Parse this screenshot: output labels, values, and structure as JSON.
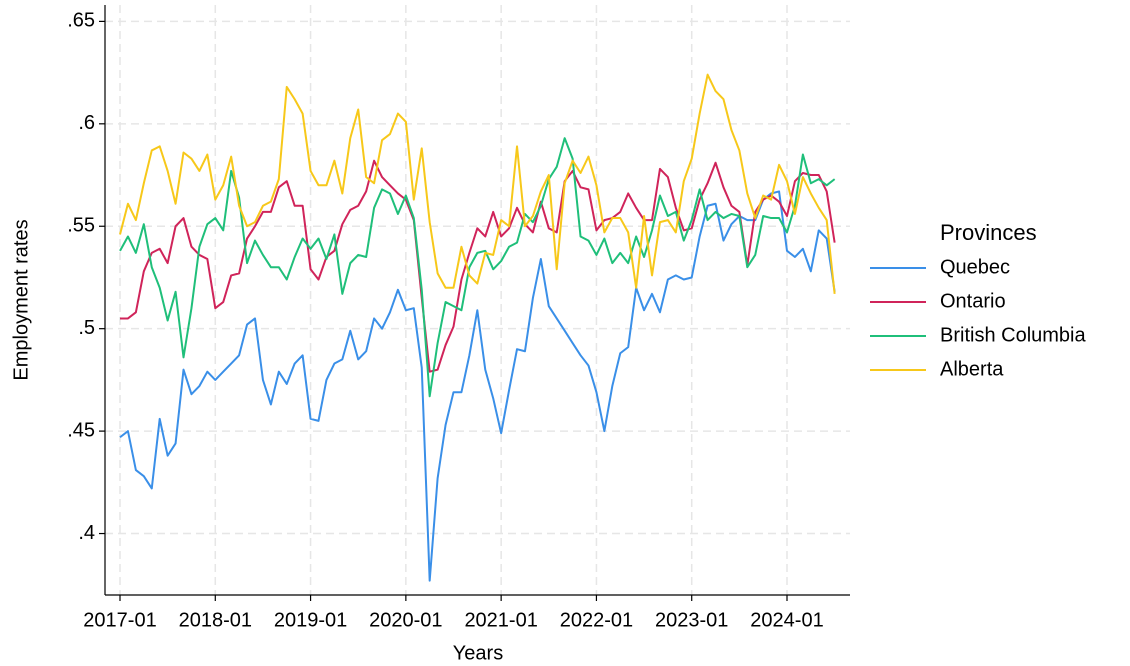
{
  "chart_data": {
    "type": "line",
    "y_label": "Employment rates",
    "x_label": "Years",
    "legend_title": "Provinces",
    "x": [
      "2017-01",
      "2017-02",
      "2017-03",
      "2017-04",
      "2017-05",
      "2017-06",
      "2017-07",
      "2017-08",
      "2017-09",
      "2017-10",
      "2017-11",
      "2017-12",
      "2018-01",
      "2018-02",
      "2018-03",
      "2018-04",
      "2018-05",
      "2018-06",
      "2018-07",
      "2018-08",
      "2018-09",
      "2018-10",
      "2018-11",
      "2018-12",
      "2019-01",
      "2019-02",
      "2019-03",
      "2019-04",
      "2019-05",
      "2019-06",
      "2019-07",
      "2019-08",
      "2019-09",
      "2019-10",
      "2019-11",
      "2019-12",
      "2020-01",
      "2020-02",
      "2020-03",
      "2020-04",
      "2020-05",
      "2020-06",
      "2020-07",
      "2020-08",
      "2020-09",
      "2020-10",
      "2020-11",
      "2020-12",
      "2021-01",
      "2021-02",
      "2021-03",
      "2021-04",
      "2021-05",
      "2021-06",
      "2021-07",
      "2021-08",
      "2021-09",
      "2021-10",
      "2021-11",
      "2021-12",
      "2022-01",
      "2022-02",
      "2022-03",
      "2022-04",
      "2022-05",
      "2022-06",
      "2022-07",
      "2022-08",
      "2022-09",
      "2022-10",
      "2022-11",
      "2022-12",
      "2023-01",
      "2023-02",
      "2023-03",
      "2023-04",
      "2023-05",
      "2023-06",
      "2023-07",
      "2023-08",
      "2023-09",
      "2023-10",
      "2023-11",
      "2023-12",
      "2024-01",
      "2024-02",
      "2024-03",
      "2024-04",
      "2024-05",
      "2024-06",
      "2024-07"
    ],
    "xticks": [
      "2017-01",
      "2018-01",
      "2019-01",
      "2020-01",
      "2021-01",
      "2022-01",
      "2023-01",
      "2024-01"
    ],
    "ylim": [
      0.37,
      0.658
    ],
    "yticks": [
      {
        "value": 0.4,
        "label": ".4"
      },
      {
        "value": 0.45,
        "label": ".45"
      },
      {
        "value": 0.5,
        "label": ".5"
      },
      {
        "value": 0.55,
        "label": ".55"
      },
      {
        "value": 0.6,
        "label": ".6"
      },
      {
        "value": 0.65,
        "label": ".65"
      }
    ],
    "grid": true,
    "legend": "right",
    "series": [
      {
        "name": "Quebec",
        "color": "#3a8fe8",
        "values": [
          0.447,
          0.45,
          0.431,
          0.428,
          0.422,
          0.456,
          0.438,
          0.444,
          0.48,
          0.468,
          0.472,
          0.479,
          0.475,
          0.479,
          0.483,
          0.487,
          0.502,
          0.505,
          0.475,
          0.463,
          0.479,
          0.473,
          0.483,
          0.487,
          0.456,
          0.455,
          0.475,
          0.483,
          0.485,
          0.499,
          0.485,
          0.489,
          0.505,
          0.5,
          0.508,
          0.519,
          0.509,
          0.51,
          0.481,
          0.377,
          0.427,
          0.453,
          0.469,
          0.469,
          0.487,
          0.509,
          0.48,
          0.466,
          0.449,
          0.47,
          0.49,
          0.489,
          0.515,
          0.534,
          0.511,
          0.505,
          0.499,
          0.493,
          0.487,
          0.482,
          0.469,
          0.45,
          0.472,
          0.488,
          0.491,
          0.52,
          0.509,
          0.517,
          0.508,
          0.524,
          0.526,
          0.524,
          0.525,
          0.545,
          0.56,
          0.561,
          0.543,
          0.551,
          0.555,
          0.553,
          0.553,
          0.563,
          0.566,
          0.567,
          0.538,
          0.535,
          0.539,
          0.528,
          0.548,
          0.544,
          0.518
        ]
      },
      {
        "name": "Ontario",
        "color": "#d0245a",
        "values": [
          0.505,
          0.505,
          0.508,
          0.528,
          0.537,
          0.539,
          0.532,
          0.55,
          0.554,
          0.54,
          0.536,
          0.534,
          0.51,
          0.513,
          0.526,
          0.527,
          0.544,
          0.55,
          0.557,
          0.557,
          0.569,
          0.572,
          0.56,
          0.56,
          0.529,
          0.524,
          0.535,
          0.538,
          0.551,
          0.558,
          0.56,
          0.567,
          0.582,
          0.574,
          0.57,
          0.566,
          0.563,
          0.553,
          0.515,
          0.479,
          0.48,
          0.492,
          0.501,
          0.524,
          0.537,
          0.549,
          0.545,
          0.557,
          0.545,
          0.549,
          0.559,
          0.551,
          0.547,
          0.562,
          0.549,
          0.547,
          0.572,
          0.577,
          0.569,
          0.568,
          0.548,
          0.553,
          0.554,
          0.557,
          0.566,
          0.559,
          0.553,
          0.553,
          0.578,
          0.574,
          0.559,
          0.548,
          0.549,
          0.563,
          0.571,
          0.581,
          0.569,
          0.56,
          0.557,
          0.531,
          0.557,
          0.563,
          0.565,
          0.562,
          0.555,
          0.572,
          0.576,
          0.575,
          0.575,
          0.567,
          0.542
        ]
      },
      {
        "name": "British Columbia",
        "color": "#1fbf7a",
        "values": [
          0.538,
          0.545,
          0.537,
          0.551,
          0.53,
          0.52,
          0.504,
          0.518,
          0.486,
          0.51,
          0.54,
          0.551,
          0.554,
          0.548,
          0.577,
          0.564,
          0.532,
          0.543,
          0.536,
          0.53,
          0.53,
          0.524,
          0.535,
          0.544,
          0.539,
          0.544,
          0.534,
          0.546,
          0.517,
          0.532,
          0.536,
          0.535,
          0.559,
          0.568,
          0.566,
          0.556,
          0.565,
          0.554,
          0.519,
          0.467,
          0.493,
          0.513,
          0.511,
          0.509,
          0.53,
          0.537,
          0.538,
          0.529,
          0.533,
          0.54,
          0.542,
          0.556,
          0.552,
          0.56,
          0.573,
          0.579,
          0.593,
          0.583,
          0.545,
          0.543,
          0.536,
          0.544,
          0.532,
          0.537,
          0.532,
          0.545,
          0.535,
          0.548,
          0.565,
          0.555,
          0.557,
          0.543,
          0.553,
          0.568,
          0.553,
          0.557,
          0.554,
          0.556,
          0.555,
          0.53,
          0.536,
          0.555,
          0.554,
          0.554,
          0.547,
          0.56,
          0.585,
          0.571,
          0.573,
          0.57,
          0.573
        ]
      },
      {
        "name": "Alberta",
        "color": "#f7c81a",
        "values": [
          0.546,
          0.561,
          0.553,
          0.571,
          0.587,
          0.589,
          0.577,
          0.561,
          0.586,
          0.583,
          0.577,
          0.585,
          0.563,
          0.57,
          0.584,
          0.56,
          0.55,
          0.552,
          0.56,
          0.562,
          0.573,
          0.618,
          0.612,
          0.605,
          0.577,
          0.57,
          0.57,
          0.582,
          0.566,
          0.593,
          0.607,
          0.574,
          0.571,
          0.592,
          0.595,
          0.605,
          0.601,
          0.563,
          0.588,
          0.552,
          0.527,
          0.52,
          0.52,
          0.54,
          0.526,
          0.522,
          0.537,
          0.536,
          0.553,
          0.55,
          0.589,
          0.55,
          0.555,
          0.567,
          0.575,
          0.529,
          0.571,
          0.582,
          0.576,
          0.584,
          0.57,
          0.547,
          0.554,
          0.554,
          0.547,
          0.52,
          0.555,
          0.526,
          0.552,
          0.553,
          0.547,
          0.572,
          0.583,
          0.605,
          0.624,
          0.616,
          0.612,
          0.597,
          0.587,
          0.566,
          0.554,
          0.565,
          0.563,
          0.58,
          0.572,
          0.556,
          0.574,
          0.566,
          0.559,
          0.553,
          0.517
        ]
      }
    ]
  }
}
